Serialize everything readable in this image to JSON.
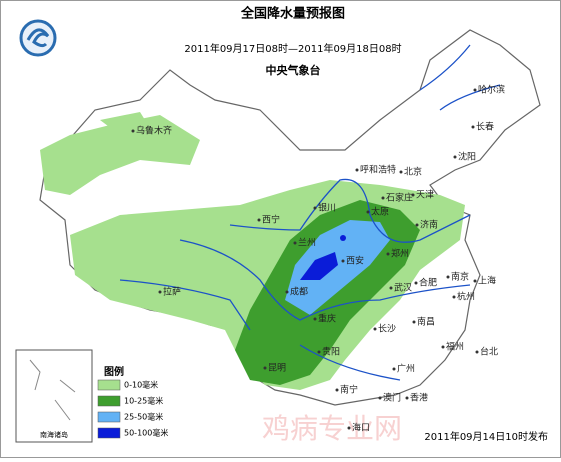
{
  "header": {
    "title": "全国降水量预报图",
    "period": "2011年09月17日08时—2011年09月18日08时",
    "issuer": "中央气象台"
  },
  "cities": [
    "乌鲁木齐",
    "哈尔滨",
    "长春",
    "沈阳",
    "呼和浩特",
    "北京",
    "天津",
    "石家庄",
    "银川",
    "太原",
    "西宁",
    "兰州",
    "济南",
    "郑州",
    "西安",
    "拉萨",
    "成都",
    "合肥",
    "南京",
    "上海",
    "武汉",
    "杭州",
    "重庆",
    "长沙",
    "南昌",
    "贵阳",
    "福州",
    "昆明",
    "台北",
    "南宁",
    "广州",
    "香港",
    "澳门",
    "海口"
  ],
  "legend": {
    "title": "图例",
    "items": [
      {
        "label": "0-10毫米",
        "color": "#a6e08e"
      },
      {
        "label": "10-25毫米",
        "color": "#3e9e2e"
      },
      {
        "label": "25-50毫米",
        "color": "#62b2f5"
      },
      {
        "label": "50-100毫米",
        "color": "#0a1cd8"
      }
    ]
  },
  "inset": {
    "label": "南海诸岛"
  },
  "footer": {
    "issued": "2011年09月14日10时发布",
    "watermark": "鸡病专业网"
  }
}
